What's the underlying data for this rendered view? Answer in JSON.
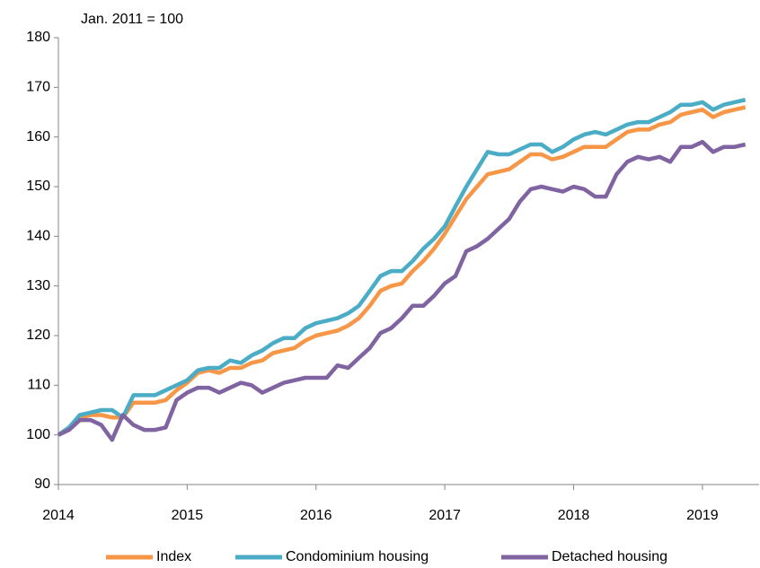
{
  "chart_data": {
    "type": "line",
    "subtitle": "Jan. 2011 = 100",
    "x": [
      2014,
      2014.083,
      2014.167,
      2014.25,
      2014.333,
      2014.417,
      2014.5,
      2014.583,
      2014.667,
      2014.75,
      2014.833,
      2014.917,
      2015,
      2015.083,
      2015.167,
      2015.25,
      2015.333,
      2015.417,
      2015.5,
      2015.583,
      2015.667,
      2015.75,
      2015.833,
      2015.917,
      2016,
      2016.083,
      2016.167,
      2016.25,
      2016.333,
      2016.417,
      2016.5,
      2016.583,
      2016.667,
      2016.75,
      2016.833,
      2016.917,
      2017,
      2017.083,
      2017.167,
      2017.25,
      2017.333,
      2017.417,
      2017.5,
      2017.583,
      2017.667,
      2017.75,
      2017.833,
      2017.917,
      2018,
      2018.083,
      2018.167,
      2018.25,
      2018.333,
      2018.417,
      2018.5,
      2018.583,
      2018.667,
      2018.75,
      2018.833,
      2018.917,
      2019,
      2019.083,
      2019.167,
      2019.25,
      2019.333
    ],
    "series": [
      {
        "name": "Index",
        "color": "#f79646",
        "values": [
          100,
          101.5,
          103.5,
          104,
          104,
          103.5,
          103.5,
          106.5,
          106.5,
          106.5,
          107,
          109,
          110.5,
          112.5,
          113,
          112.5,
          113.5,
          113.5,
          114.5,
          115,
          116.5,
          117,
          117.5,
          119,
          120,
          120.5,
          121,
          122,
          123.5,
          126,
          129,
          130,
          130.5,
          133,
          135,
          137.5,
          140.5,
          144,
          147.5,
          150,
          152.5,
          153,
          153.5,
          155,
          156.5,
          156.5,
          155.5,
          156,
          157,
          158,
          158,
          158,
          159.5,
          161,
          161.5,
          161.5,
          162.5,
          163,
          164.5,
          165,
          165.5,
          164,
          165,
          165.5,
          166
        ]
      },
      {
        "name": "Condominium housing",
        "color": "#4bacc6",
        "values": [
          100,
          101.5,
          104,
          104.5,
          105,
          105,
          103.5,
          108,
          108,
          108,
          109,
          110,
          111,
          113,
          113.5,
          113.5,
          115,
          114.5,
          116,
          117,
          118.5,
          119.5,
          119.5,
          121.5,
          122.5,
          123,
          123.5,
          124.5,
          126,
          129,
          132,
          133,
          133,
          135,
          137.5,
          139.5,
          142,
          146,
          150,
          153.5,
          157,
          156.5,
          156.5,
          157.5,
          158.5,
          158.5,
          157,
          158,
          159.5,
          160.5,
          161,
          160.5,
          161.5,
          162.5,
          163,
          163,
          164,
          165,
          166.5,
          166.5,
          167,
          165.5,
          166.5,
          167,
          167.5
        ]
      },
      {
        "name": "Detached housing",
        "color": "#8064a2",
        "values": [
          100,
          101,
          103,
          103,
          102,
          99,
          104,
          102,
          101,
          101,
          101.5,
          107,
          108.5,
          109.5,
          109.5,
          108.5,
          109.5,
          110.5,
          110,
          108.5,
          109.5,
          110.5,
          111,
          111.5,
          111.5,
          111.5,
          114,
          113.5,
          115.5,
          117.5,
          120.5,
          121.5,
          123.5,
          126,
          126,
          128,
          130.5,
          132,
          137,
          138,
          139.5,
          141.5,
          143.5,
          147,
          149.5,
          150,
          149.5,
          149,
          150,
          149.5,
          148,
          148,
          152.5,
          155,
          156,
          155.5,
          156,
          155,
          158,
          158,
          159,
          157,
          158,
          158,
          158.5
        ]
      }
    ],
    "xlim": [
      2014,
      2019.44
    ],
    "xticks": [
      2014,
      2015,
      2016,
      2017,
      2018,
      2019
    ],
    "ylim": [
      90,
      180
    ],
    "yticks": [
      90,
      100,
      110,
      120,
      130,
      140,
      150,
      160,
      170,
      180
    ],
    "grid": false,
    "legend": "bottom"
  }
}
